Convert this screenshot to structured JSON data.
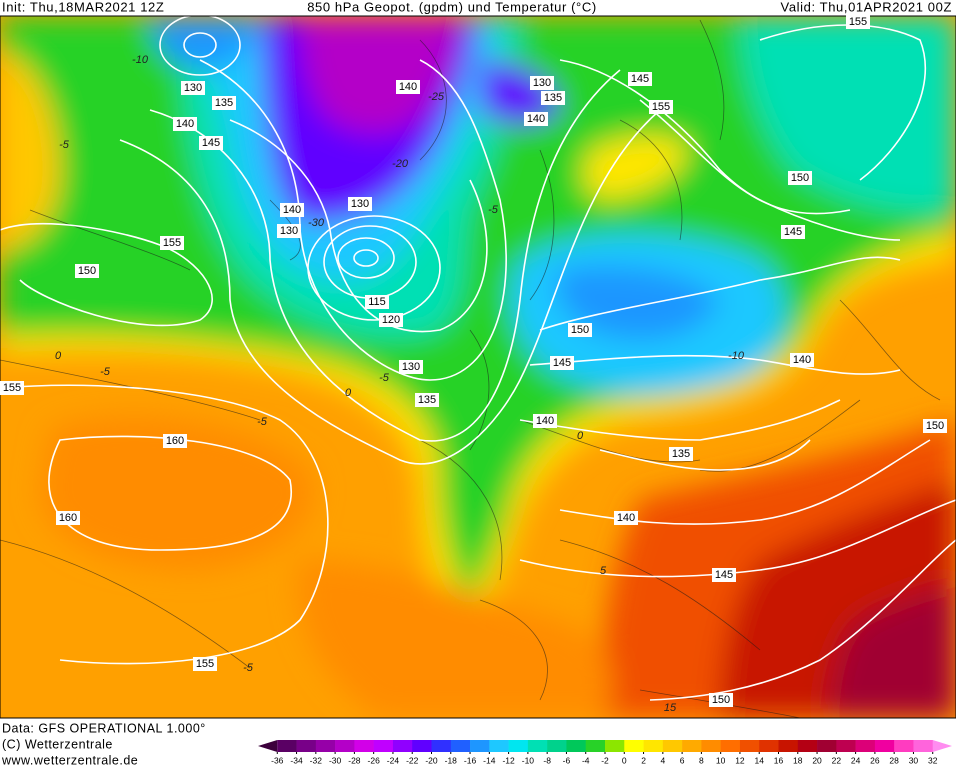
{
  "header": {
    "init": "Init: Thu,18MAR2021 12Z",
    "title": "850 hPa Geopot. (gpdm) und Temperatur (°C)",
    "valid": "Valid: Thu,01APR2021 00Z"
  },
  "map": {
    "contour_labels": [
      "130",
      "135",
      "140",
      "145",
      "155",
      "150",
      "155",
      "160",
      "160",
      "155",
      "140",
      "130",
      "135",
      "140",
      "145",
      "155",
      "155",
      "150",
      "145",
      "140",
      "130",
      "130",
      "115",
      "120",
      "130",
      "135",
      "150",
      "145",
      "140",
      "140",
      "135",
      "140",
      "145",
      "150",
      "150"
    ],
    "temperature_labels": [
      "-10",
      "-5",
      "-5",
      "0",
      "-5",
      "-5",
      "0",
      "-5",
      "-10",
      "0",
      "5",
      "-5",
      "15",
      "-25",
      "-20",
      "-30"
    ]
  },
  "footer": {
    "data": "Data: GFS OPERATIONAL 1.000°",
    "copyright": "(C) Wetterzentrale",
    "url": "www.wetterzentrale.de"
  },
  "colorbar": {
    "labels": [
      -36,
      -34,
      -32,
      -30,
      -28,
      -26,
      -24,
      -22,
      -20,
      -18,
      -16,
      -14,
      -12,
      -10,
      -8,
      -6,
      -4,
      -2,
      0,
      2,
      4,
      6,
      8,
      10,
      12,
      14,
      16,
      18,
      20,
      22,
      24,
      26,
      28,
      30,
      32
    ],
    "colors": [
      "#3c003c",
      "#5a0064",
      "#780088",
      "#9600a8",
      "#b400c8",
      "#d200e8",
      "#c000ff",
      "#9000ff",
      "#6000ff",
      "#3030ff",
      "#2060ff",
      "#1e96ff",
      "#1ec8ff",
      "#00e6f0",
      "#00e0b4",
      "#00d28c",
      "#00c85a",
      "#28d228",
      "#8ce600",
      "#ffff00",
      "#ffe600",
      "#ffc800",
      "#ffaa00",
      "#ff8c00",
      "#ff6e00",
      "#f05000",
      "#e03200",
      "#c81400",
      "#b40014",
      "#a00032",
      "#be0050",
      "#dc0078",
      "#f000a0",
      "#ff3cc0",
      "#ff64dc",
      "#ff8cf0"
    ]
  }
}
